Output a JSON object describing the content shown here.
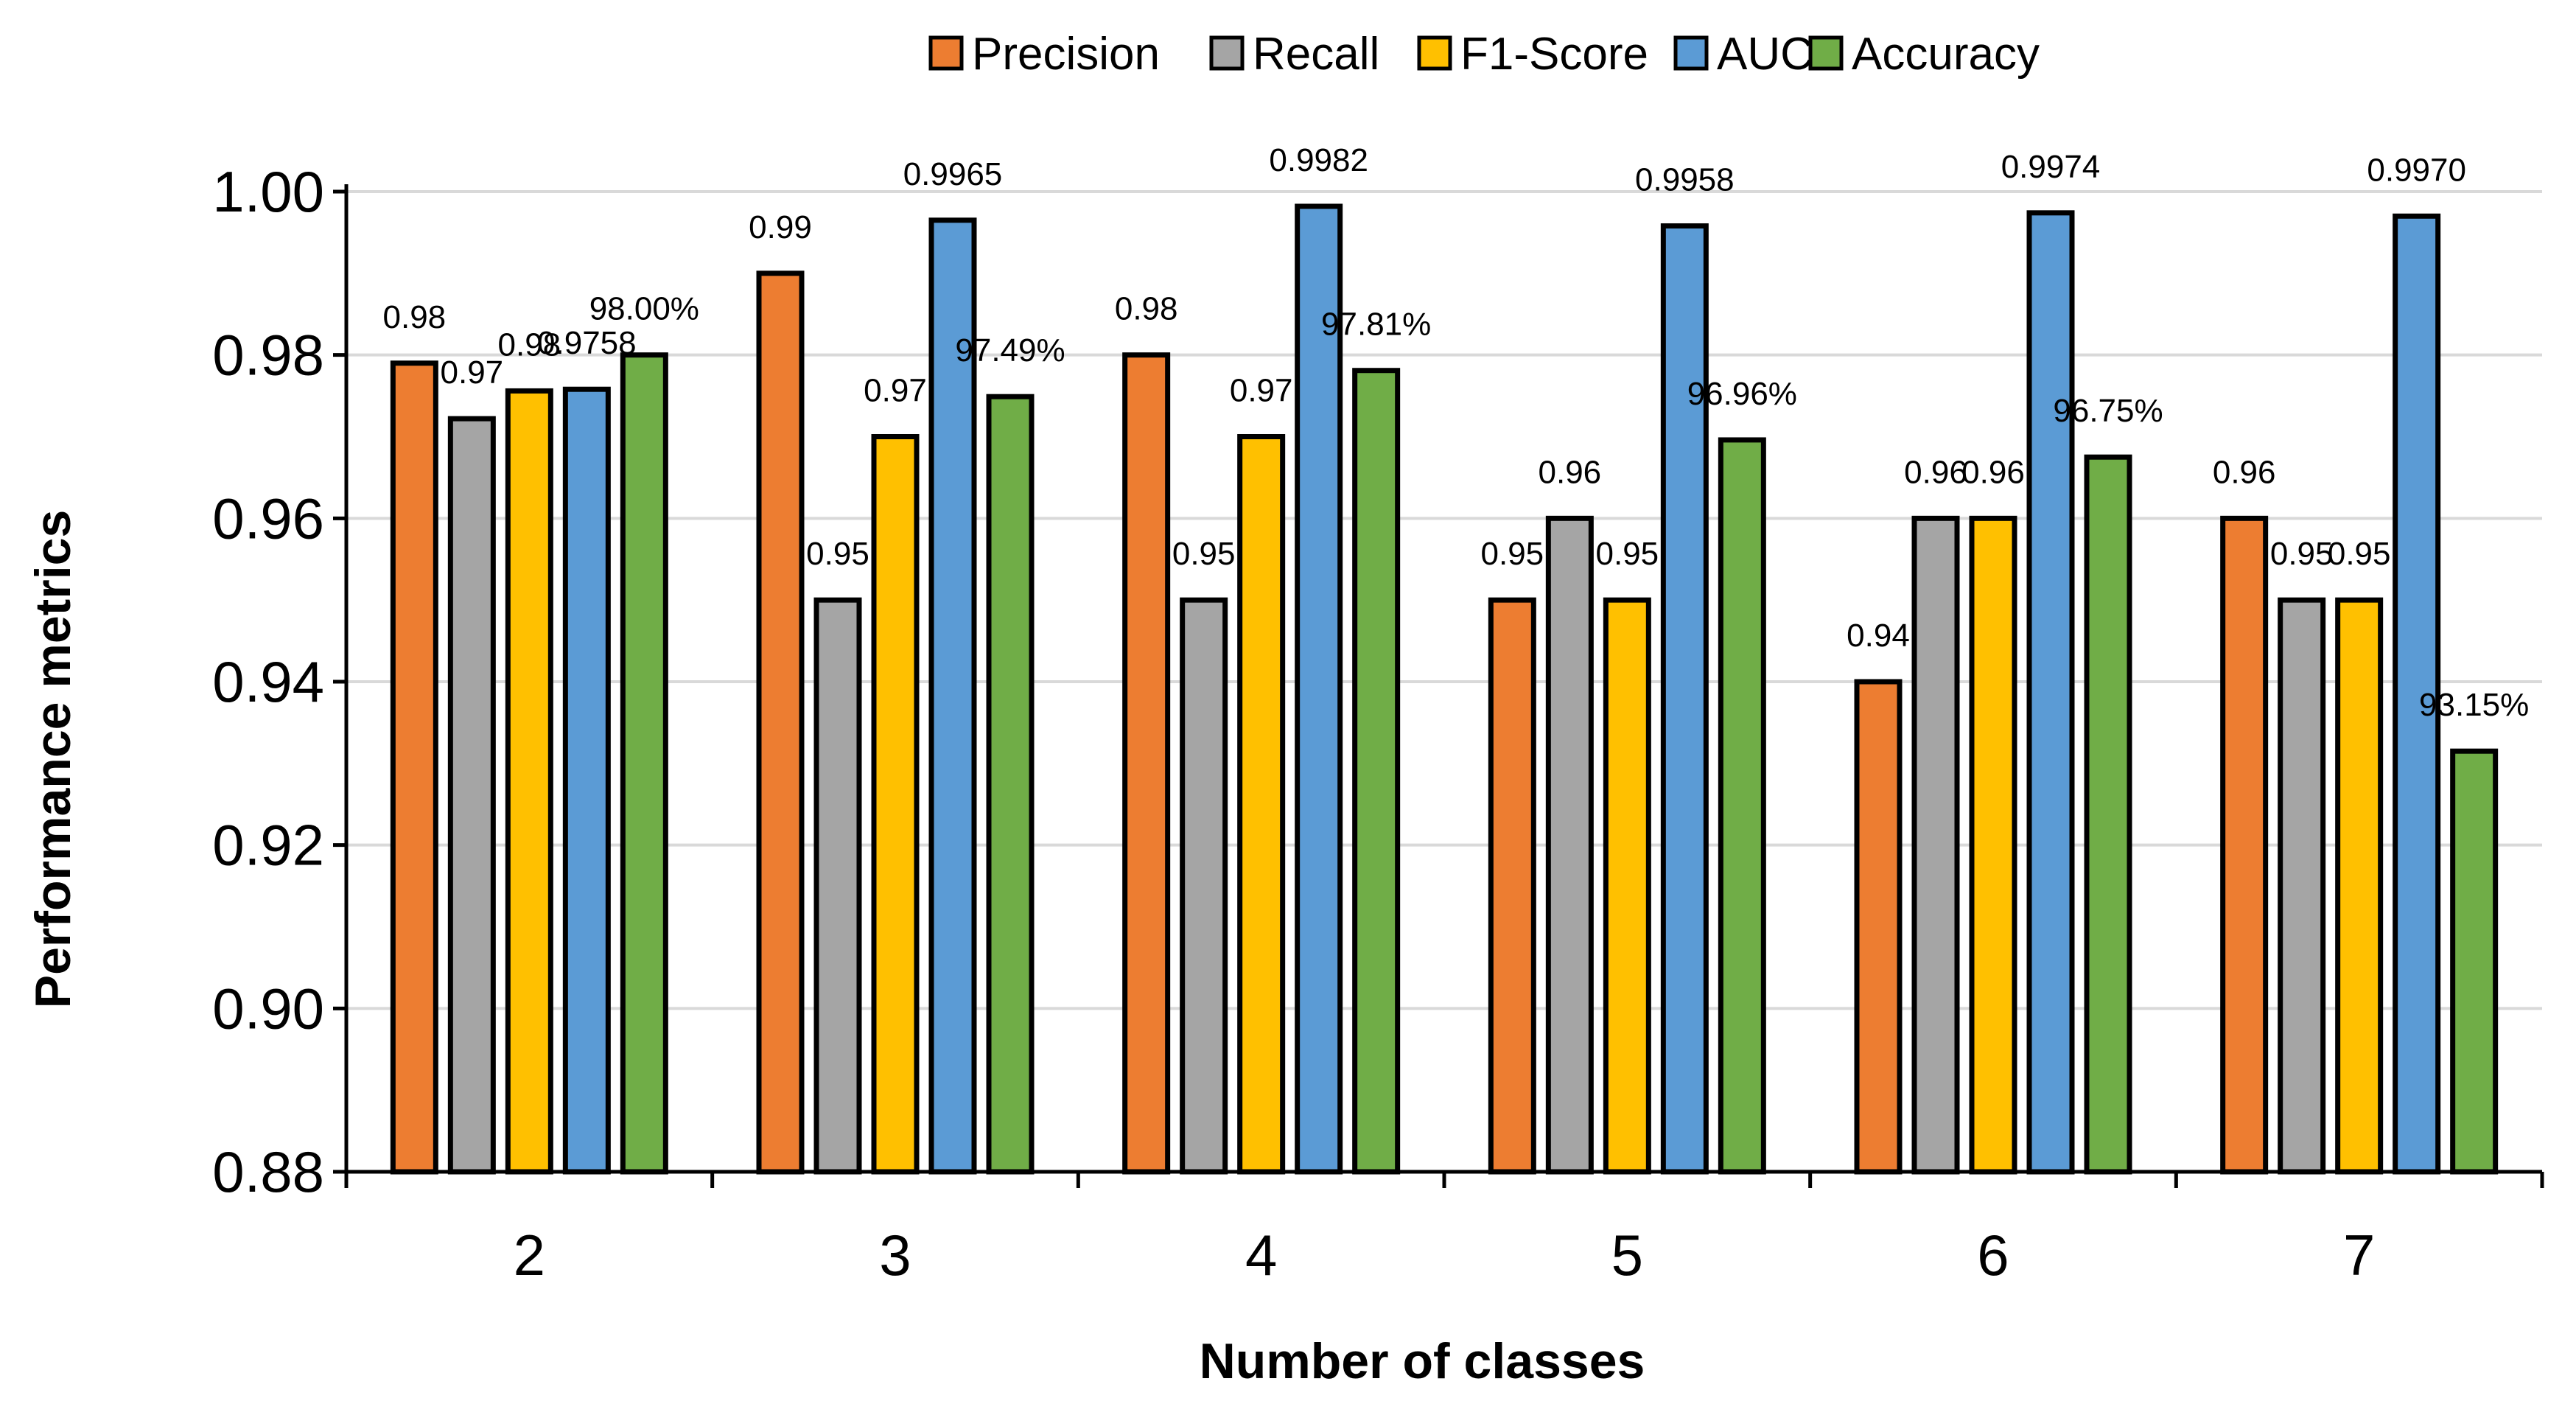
{
  "chart_data": {
    "type": "bar",
    "xlabel": "Number of classes",
    "ylabel": "Performance metrics",
    "categories": [
      "2",
      "3",
      "4",
      "5",
      "6",
      "7"
    ],
    "ylim": [
      0.88,
      1.0
    ],
    "yticks": [
      "0.88",
      "0.90",
      "0.92",
      "0.94",
      "0.96",
      "0.98",
      "1.00"
    ],
    "grid": true,
    "legend_position": "top",
    "series": [
      {
        "name": "Precision",
        "color": "#ED7D31",
        "values": [
          0.979,
          0.99,
          0.98,
          0.95,
          0.94,
          0.96
        ],
        "labels": [
          "0.98",
          "0.99",
          "0.98",
          "0.95",
          "0.94",
          "0.96"
        ]
      },
      {
        "name": "Recall",
        "color": "#A5A5A5",
        "values": [
          0.9722,
          0.95,
          0.95,
          0.96,
          0.96,
          0.95
        ],
        "labels": [
          "0.97",
          "0.95",
          "0.95",
          "0.96",
          "0.96",
          "0.95"
        ]
      },
      {
        "name": "F1-Score",
        "color": "#FFC000",
        "values": [
          0.9756,
          0.97,
          0.97,
          0.95,
          0.96,
          0.95
        ],
        "labels": [
          "0.98",
          "0.97",
          "0.97",
          "0.95",
          "0.96",
          "0.95"
        ]
      },
      {
        "name": "AUC",
        "color": "#5B9BD5",
        "values": [
          0.9758,
          0.9965,
          0.9982,
          0.9958,
          0.9974,
          0.997
        ],
        "labels": [
          "0.9758",
          "0.9965",
          "0.9982",
          "0.9958",
          "0.9974",
          "0.9970"
        ]
      },
      {
        "name": "Accuracy",
        "color": "#70AD47",
        "values": [
          0.98,
          0.9749,
          0.9781,
          0.9696,
          0.9675,
          0.9315
        ],
        "labels": [
          "98.00%",
          "97.49%",
          "97.81%",
          "96.96%",
          "96.75%",
          "93.15%"
        ]
      }
    ]
  }
}
